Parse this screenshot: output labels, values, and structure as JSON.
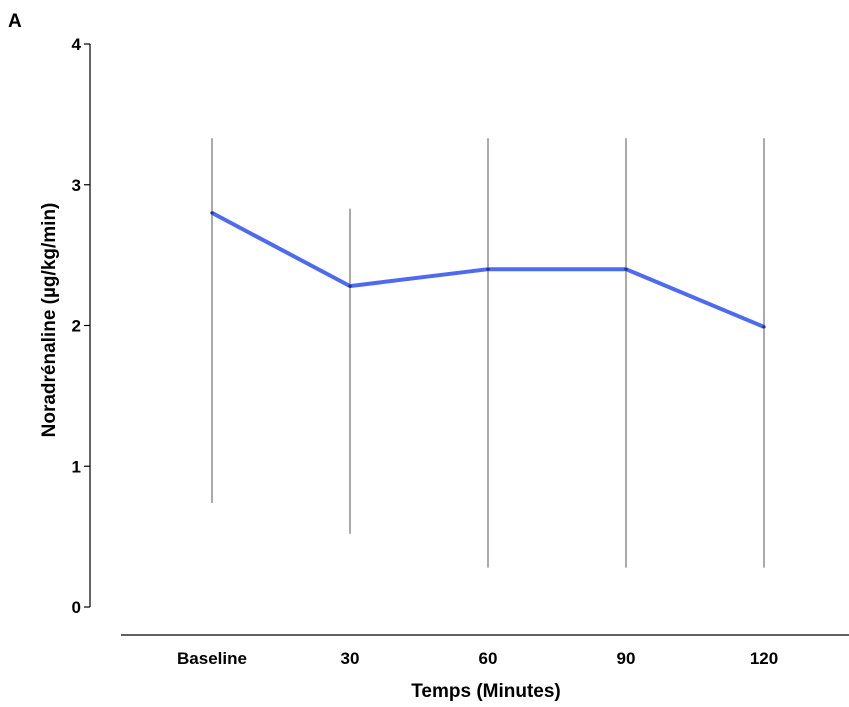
{
  "panel_label": "A",
  "chart_data": {
    "type": "line",
    "categories": [
      "Baseline",
      "30",
      "60",
      "90",
      "120"
    ],
    "series": [
      {
        "values": [
          2.8,
          2.28,
          2.4,
          2.4,
          1.99
        ],
        "error_low": [
          0.74,
          0.52,
          0.28,
          0.28,
          0.28
        ],
        "error_high": [
          3.33,
          2.83,
          3.33,
          3.33,
          3.33
        ]
      }
    ],
    "xlabel": "Temps (Minutes)",
    "ylabel": "Noradrénaline (µg/kg/min)",
    "ylim": [
      0,
      4
    ],
    "yticks": [
      "0",
      "1",
      "2",
      "3",
      "4"
    ],
    "grid": false,
    "line_color": "#4e6bef",
    "errorbar_color": "#555555",
    "axis_color": "#000000"
  }
}
